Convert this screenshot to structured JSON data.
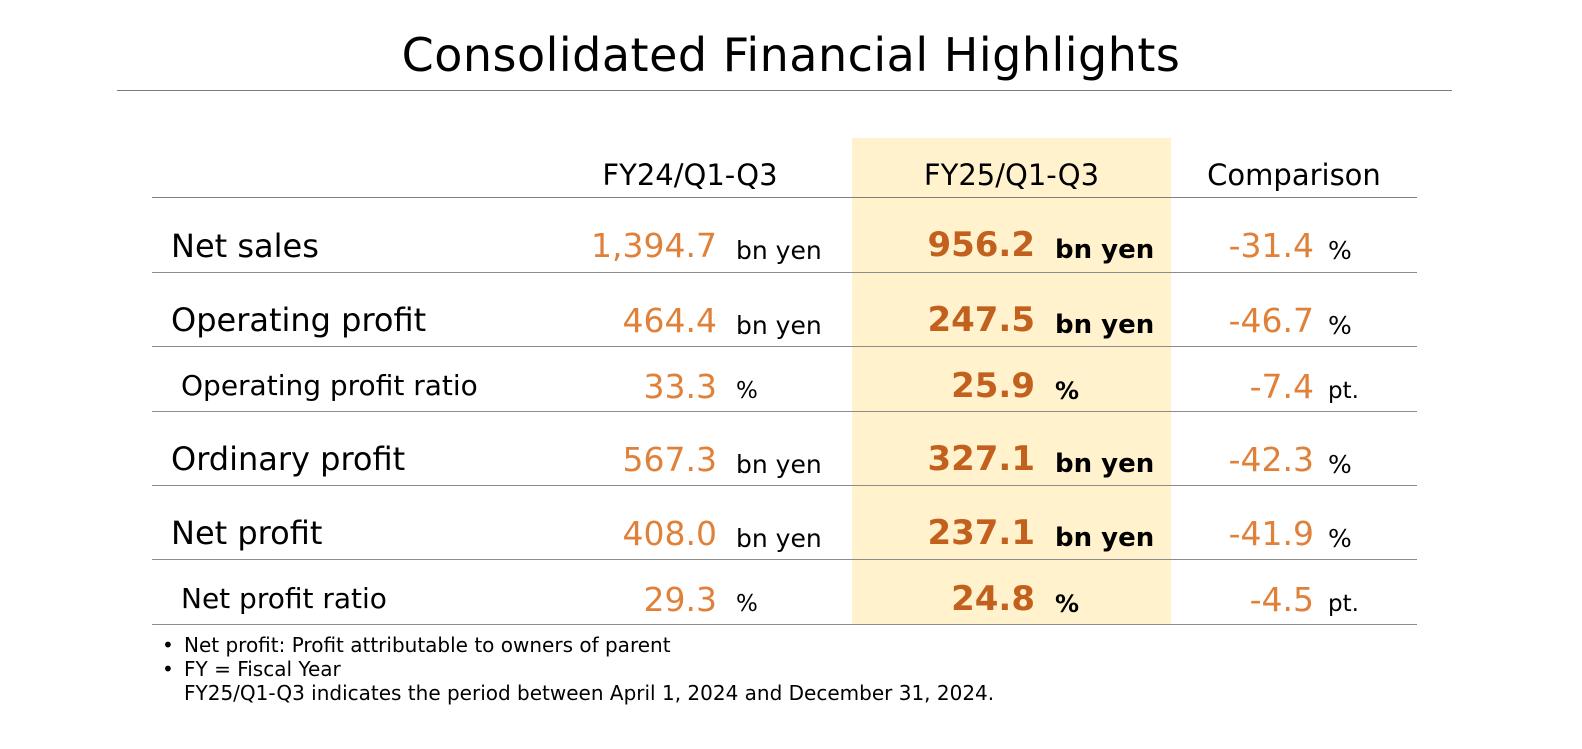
{
  "title": "Consolidated Financial Highlights",
  "columns": {
    "fy24": "FY24/Q1-Q3",
    "fy25": "FY25/Q1-Q3",
    "comparison": "Comparison"
  },
  "colors": {
    "highlight_column": "#fff2cc",
    "fy24_value": "#e0813a",
    "fy25_value": "#c2601e",
    "comparison_value": "#e0813a"
  },
  "rows": [
    {
      "label": "Net sales",
      "fy24": "1,394.7",
      "fy24_unit": "bn yen",
      "fy25": "956.2",
      "fy25_unit": "bn yen",
      "cmp": "-31.4",
      "cmp_unit": "%"
    },
    {
      "label": "Operating profit",
      "fy24": "464.4",
      "fy24_unit": "bn yen",
      "fy25": "247.5",
      "fy25_unit": "bn yen",
      "cmp": "-46.7",
      "cmp_unit": "%"
    },
    {
      "label": "Operating profit ratio",
      "fy24": "33.3",
      "fy24_unit": "%",
      "fy25": "25.9",
      "fy25_unit": "%",
      "cmp": "-7.4",
      "cmp_unit": "pt."
    },
    {
      "label": "Ordinary profit",
      "fy24": "567.3",
      "fy24_unit": "bn yen",
      "fy25": "327.1",
      "fy25_unit": "bn yen",
      "cmp": "-42.3",
      "cmp_unit": "%"
    },
    {
      "label": "Net profit",
      "fy24": "408.0",
      "fy24_unit": "bn yen",
      "fy25": "237.1",
      "fy25_unit": "bn yen",
      "cmp": "-41.9",
      "cmp_unit": "%"
    },
    {
      "label": "Net profit ratio",
      "fy24": "29.3",
      "fy24_unit": "%",
      "fy25": "24.8",
      "fy25_unit": "%",
      "cmp": "-4.5",
      "cmp_unit": "pt."
    }
  ],
  "notes": {
    "bullet": "•",
    "line1": "Net profit: Profit attributable to owners of parent",
    "line2": "FY = Fiscal Year",
    "line3": "FY25/Q1-Q3 indicates the period between April 1, 2024 and December 31, 2024."
  }
}
